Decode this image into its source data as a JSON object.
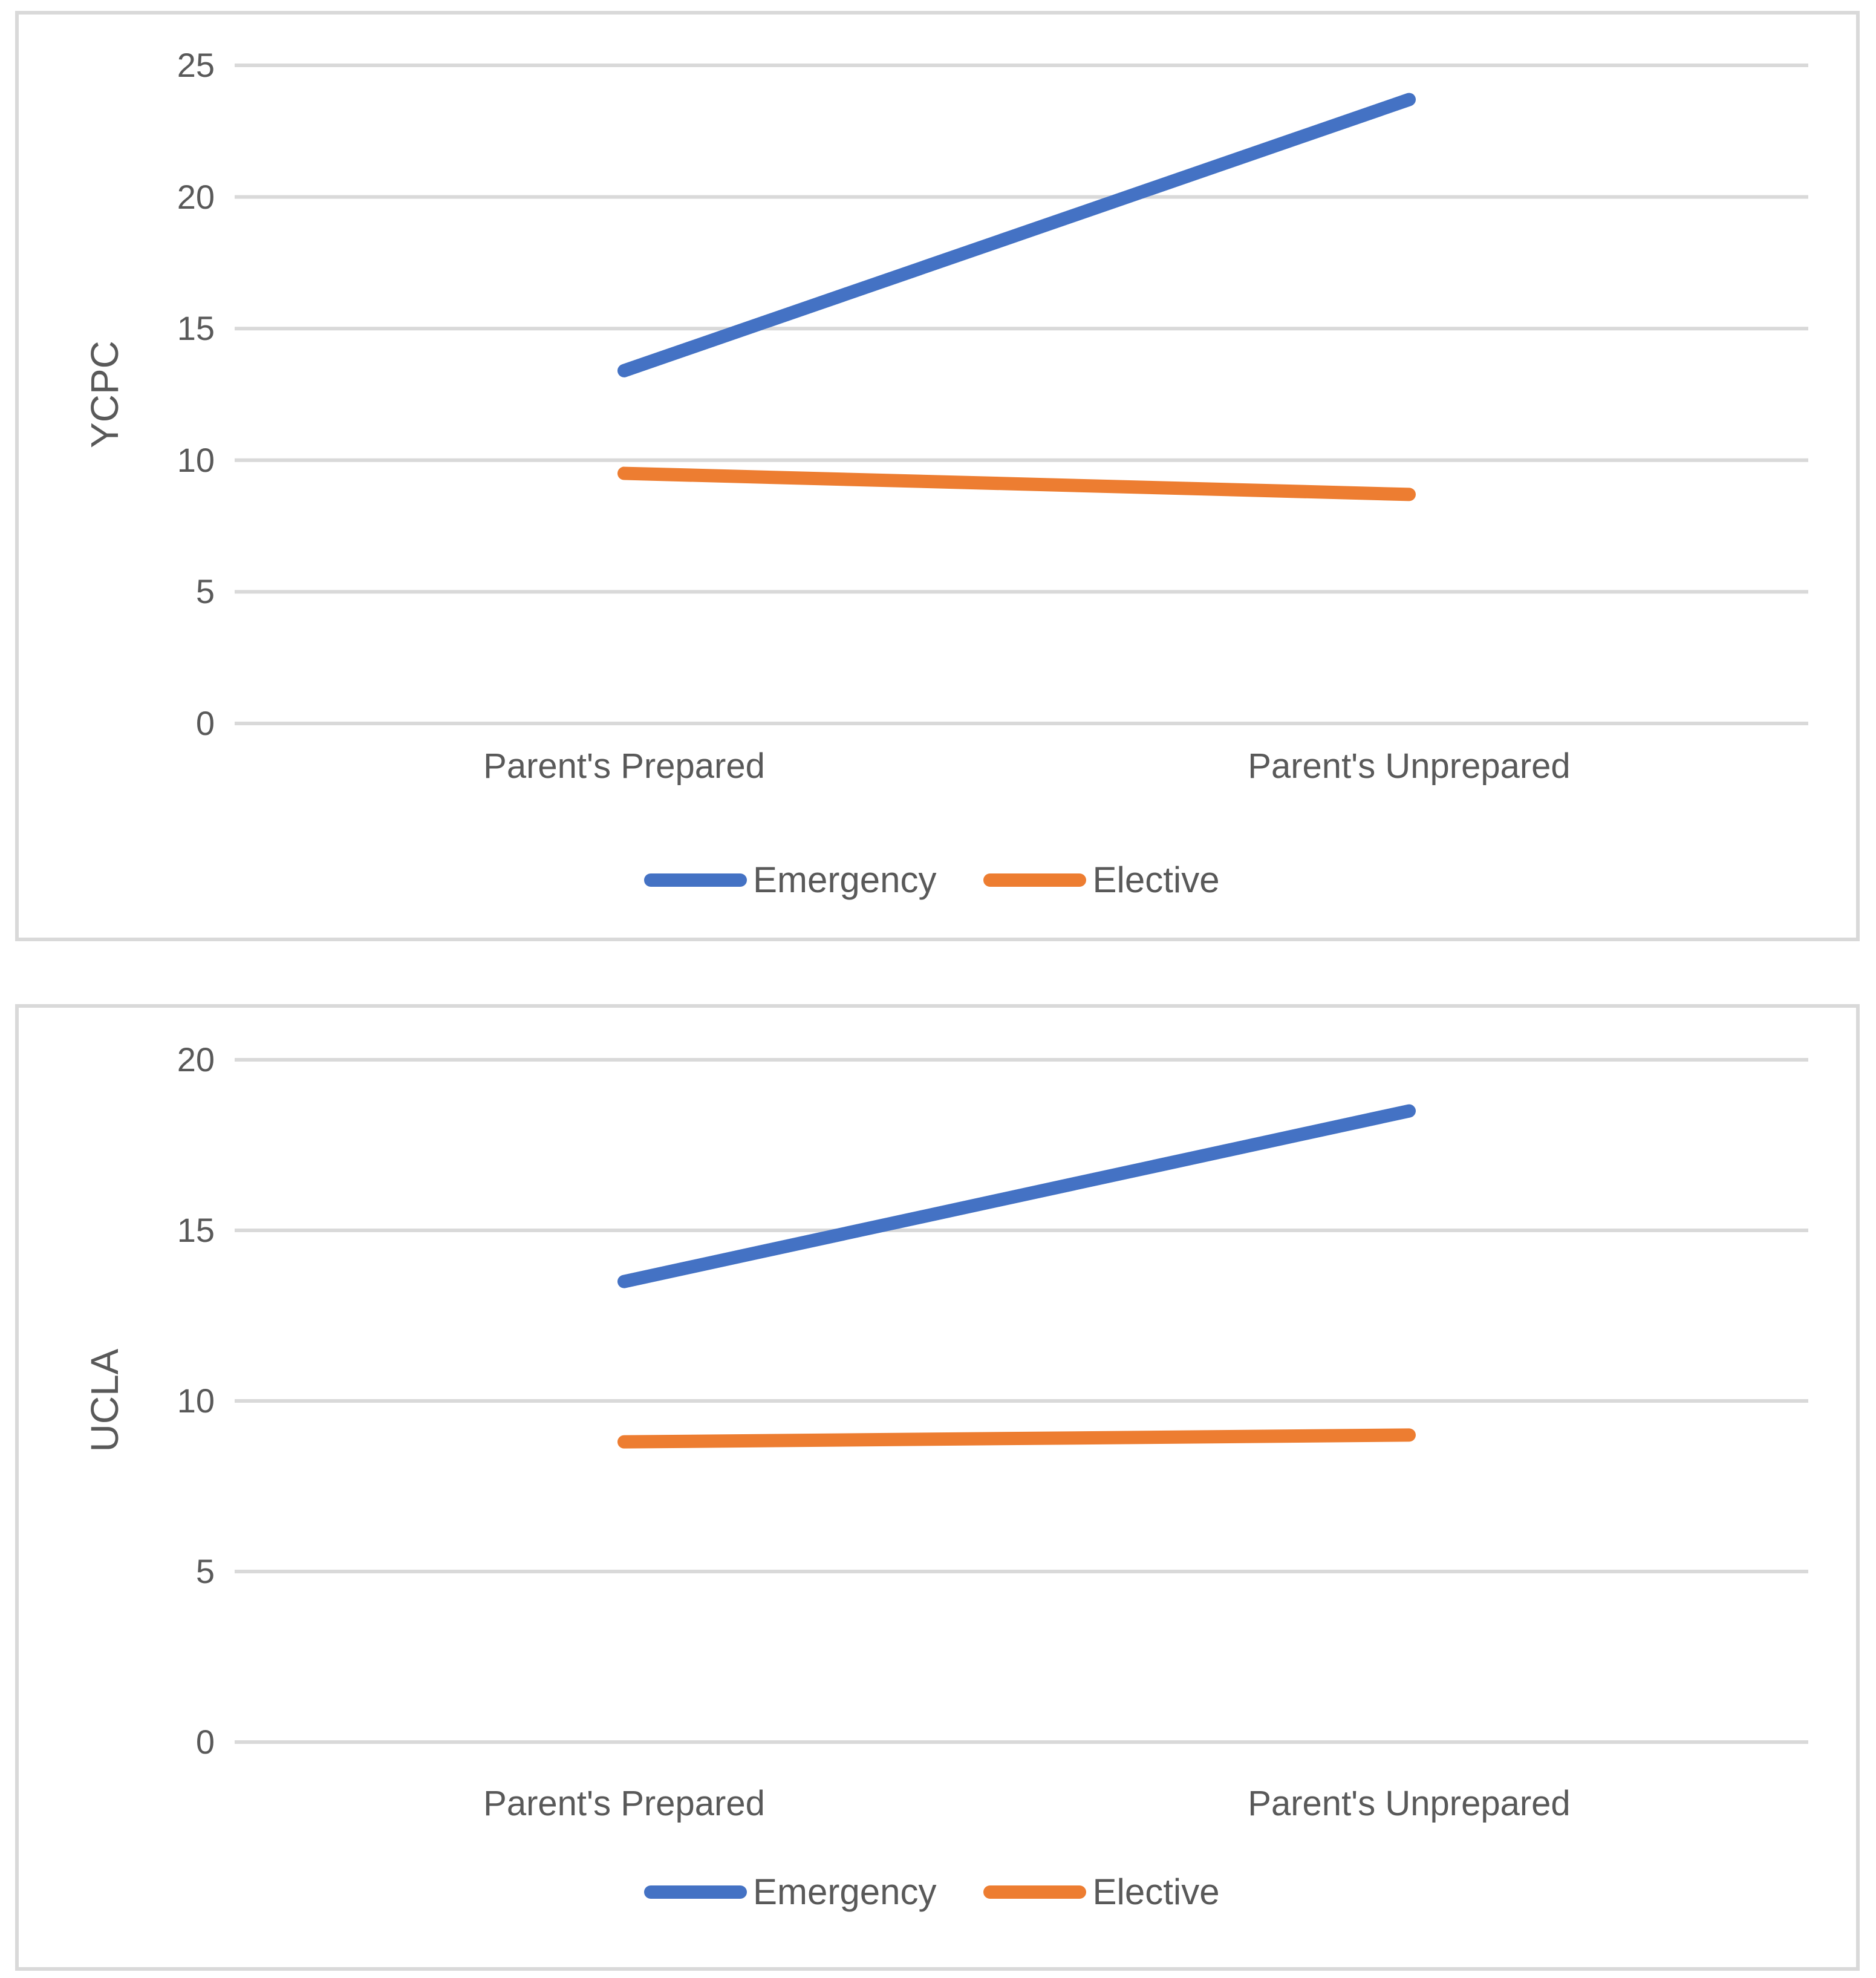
{
  "styles": {
    "background": "#FFFFFF",
    "grid_color": "#D9D9D9",
    "border_color": "#D9D9D9",
    "text_color": "#595959",
    "emergency_color": "#4472C4",
    "elective_color": "#ED7D31"
  },
  "chart_data": [
    {
      "type": "line",
      "title": "",
      "ylabel": "YCPC",
      "xlabel": "",
      "categories": [
        "Parent's Prepared",
        "Parent's Unprepared"
      ],
      "series": [
        {
          "name": "Emergency",
          "color": "#4472C4",
          "values": [
            13.4,
            23.7
          ]
        },
        {
          "name": "Elective",
          "color": "#ED7D31",
          "values": [
            9.5,
            8.7
          ]
        }
      ],
      "ylim": [
        0,
        25
      ],
      "ytick_step": 5,
      "y_tick_labels": [
        "0",
        "5",
        "10",
        "15",
        "20",
        "25"
      ],
      "grid": true,
      "legend_position": "bottom"
    },
    {
      "type": "line",
      "title": "",
      "ylabel": "UCLA",
      "xlabel": "",
      "categories": [
        "Parent's Prepared",
        "Parent's Unprepared"
      ],
      "series": [
        {
          "name": "Emergency",
          "color": "#4472C4",
          "values": [
            13.5,
            18.5
          ]
        },
        {
          "name": "Elective",
          "color": "#ED7D31",
          "values": [
            8.8,
            9.0
          ]
        }
      ],
      "ylim": [
        0,
        20
      ],
      "ytick_step": 5,
      "y_tick_labels": [
        "0",
        "5",
        "10",
        "15",
        "20"
      ],
      "grid": true,
      "legend_position": "bottom"
    }
  ]
}
